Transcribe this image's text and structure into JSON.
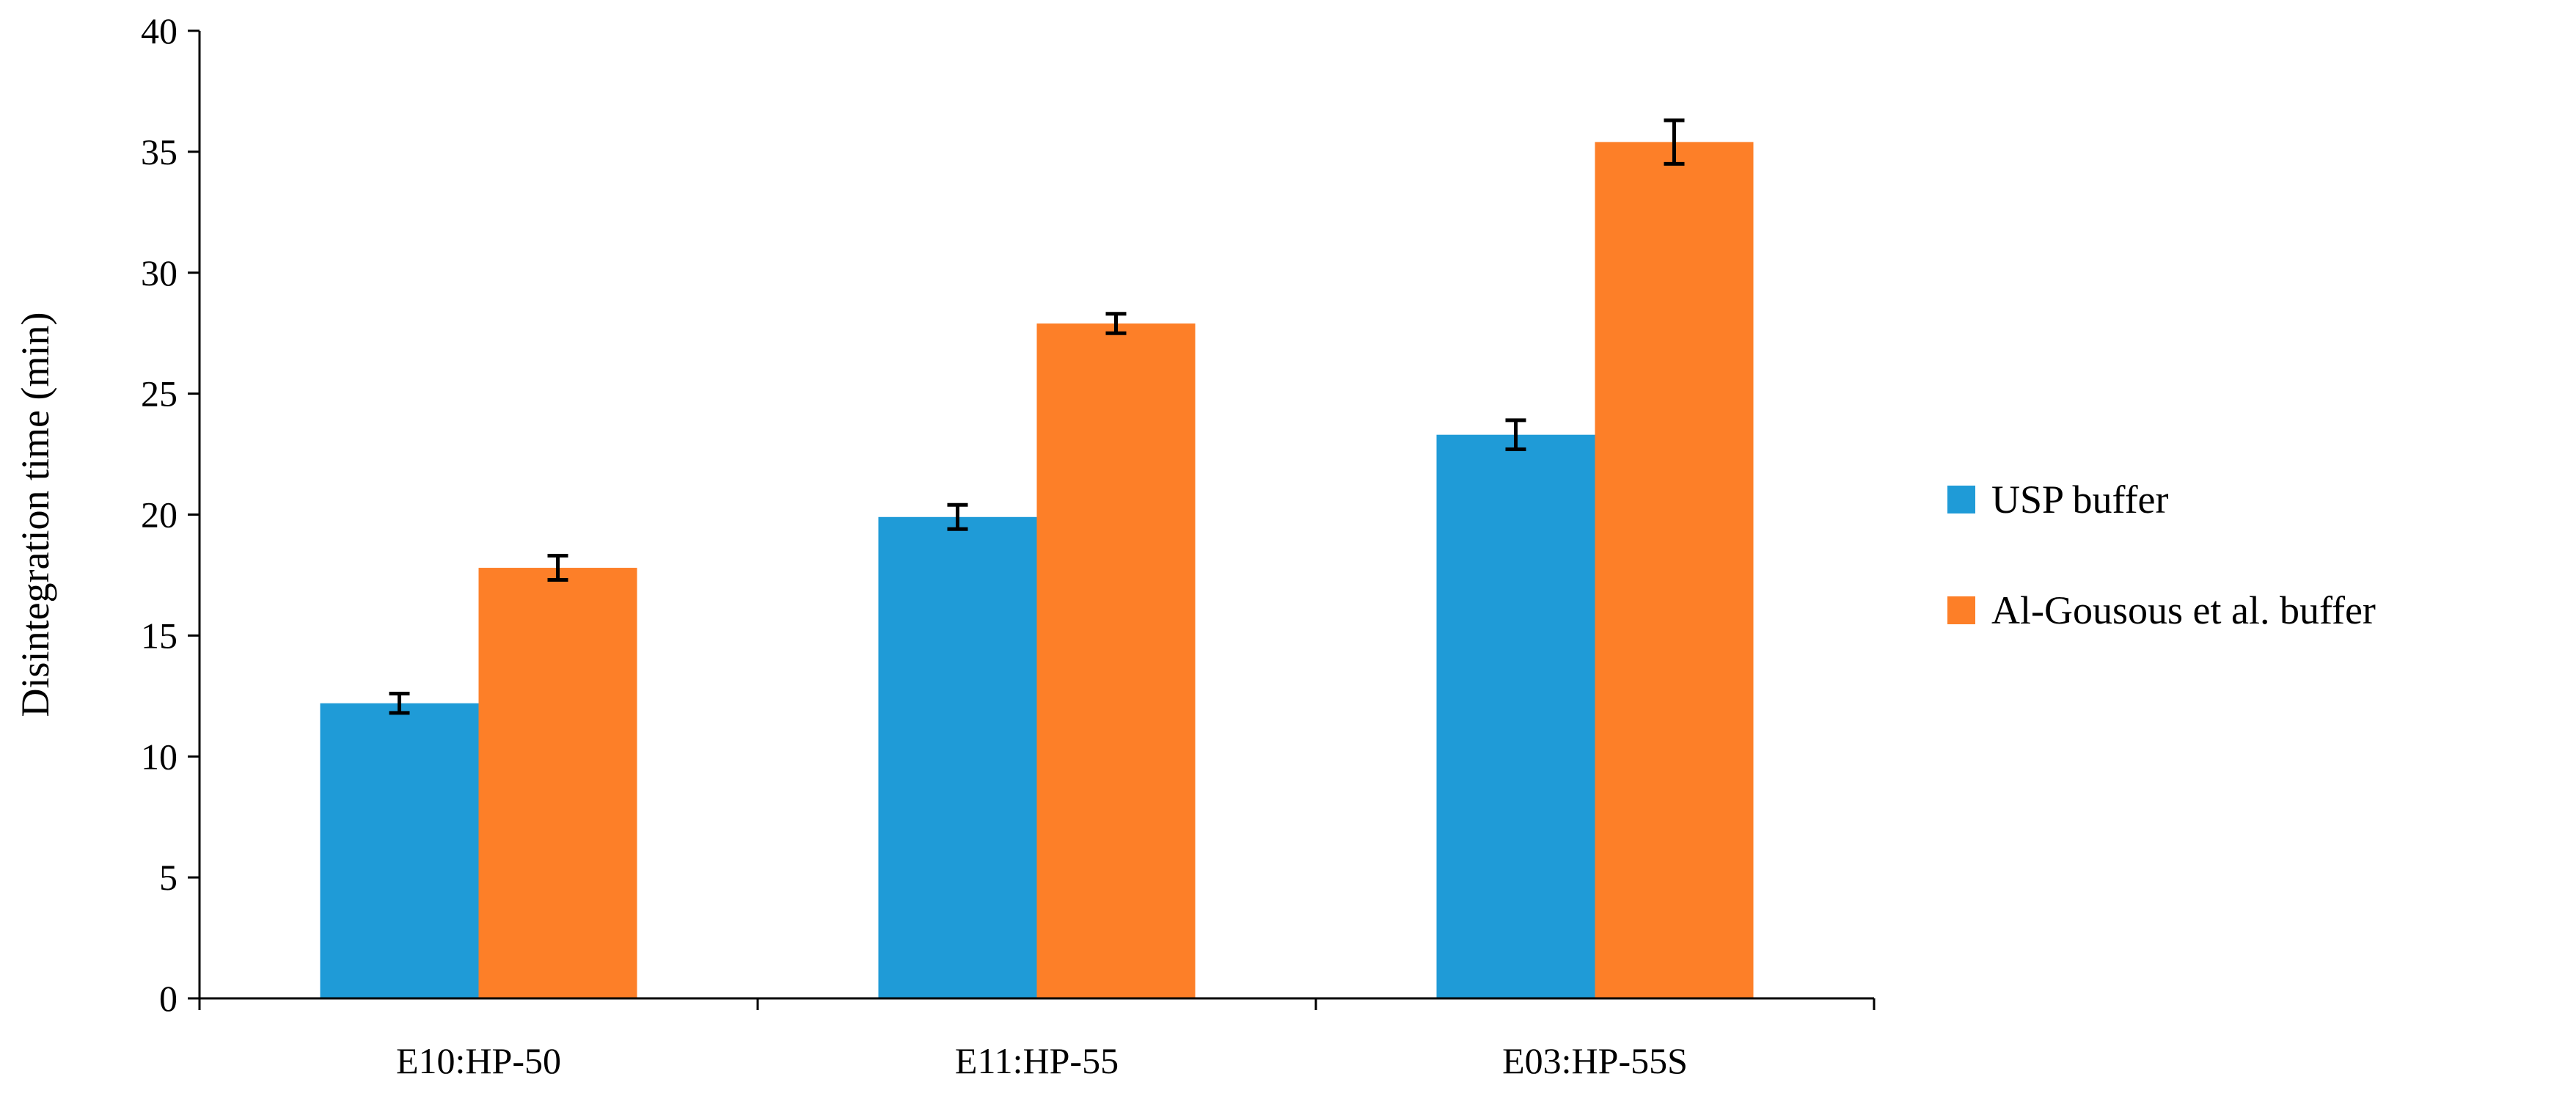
{
  "chart_data": {
    "type": "bar",
    "title": "",
    "xlabel": "",
    "ylabel": "Disintegration time (min)",
    "ylim": [
      0,
      40
    ],
    "yticks": [
      0,
      5,
      10,
      15,
      20,
      25,
      30,
      35,
      40
    ],
    "categories": [
      "E10:HP-50",
      "E11:HP-55",
      "E03:HP-55S"
    ],
    "series": [
      {
        "name": "USP buffer",
        "color": "#1f9bd7",
        "values": [
          12.2,
          19.9,
          23.3
        ],
        "errors": [
          0.4,
          0.5,
          0.6
        ]
      },
      {
        "name": "Al-Gousous et al. buffer",
        "color": "#fd7f28",
        "values": [
          17.8,
          27.9,
          35.4
        ],
        "errors": [
          0.5,
          0.4,
          0.9
        ]
      }
    ],
    "grid": false,
    "legend_position": "right"
  }
}
